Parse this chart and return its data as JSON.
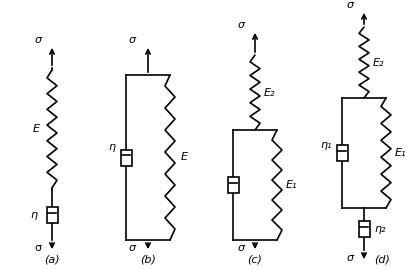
{
  "bg_color": "#ffffff",
  "line_color": "#000000",
  "line_width": 1.2,
  "fig_width": 4.07,
  "fig_height": 2.7,
  "labels": {
    "sigma": "σ",
    "E": "E",
    "E1": "E₁",
    "E2": "E₂",
    "eta": "η",
    "eta1": "η₁",
    "eta2": "η₂"
  },
  "subfig_labels": [
    "(a)",
    "(b)",
    "(c)",
    "(d)"
  ]
}
